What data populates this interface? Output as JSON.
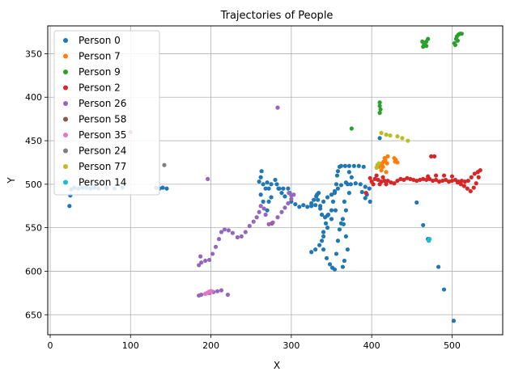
{
  "chart_data": {
    "type": "scatter",
    "title": "Trajectories of People",
    "xlabel": "X",
    "ylabel": "Y",
    "xlim": [
      -3,
      563
    ],
    "ylim": [
      673,
      318
    ],
    "y_inverted": true,
    "grid": true,
    "legend_position": "top-left",
    "x_ticks": [
      0,
      100,
      200,
      300,
      400,
      500
    ],
    "y_ticks": [
      350,
      400,
      450,
      500,
      550,
      600,
      650
    ],
    "series": [
      {
        "name": "Person 0",
        "color": "#1f77b4",
        "points": [
          [
            24,
            525
          ],
          [
            25,
            513
          ],
          [
            26,
            506
          ],
          [
            30,
            504
          ],
          [
            35,
            505
          ],
          [
            40,
            504
          ],
          [
            45,
            504
          ],
          [
            50,
            505
          ],
          [
            55,
            504
          ],
          [
            60,
            505
          ],
          [
            70,
            504
          ],
          [
            80,
            505
          ],
          [
            90,
            504
          ],
          [
            132,
            504
          ],
          [
            136,
            505
          ],
          [
            140,
            504
          ],
          [
            145,
            505
          ],
          [
            263,
            485
          ],
          [
            262,
            492
          ],
          [
            260,
            497
          ],
          [
            265,
            500
          ],
          [
            270,
            498
          ],
          [
            268,
            505
          ],
          [
            262,
            512
          ],
          [
            265,
            520
          ],
          [
            270,
            530
          ],
          [
            272,
            520
          ],
          [
            275,
            515
          ],
          [
            272,
            505
          ],
          [
            275,
            500
          ],
          [
            280,
            495
          ],
          [
            282,
            500
          ],
          [
            285,
            505
          ],
          [
            288,
            510
          ],
          [
            292,
            514
          ],
          [
            284,
            505
          ],
          [
            290,
            505
          ],
          [
            296,
            505
          ],
          [
            298,
            510
          ],
          [
            300,
            520
          ],
          [
            305,
            523
          ],
          [
            310,
            526
          ],
          [
            315,
            524
          ],
          [
            320,
            526
          ],
          [
            325,
            525
          ],
          [
            330,
            524
          ],
          [
            332,
            512
          ],
          [
            333,
            518
          ],
          [
            336,
            525
          ],
          [
            340,
            520
          ],
          [
            345,
            515
          ],
          [
            350,
            512
          ],
          [
            354,
            508
          ],
          [
            358,
            505
          ],
          [
            362,
            501
          ],
          [
            368,
            498
          ],
          [
            325,
            522
          ],
          [
            328,
            518
          ],
          [
            331,
            514
          ],
          [
            334,
            510
          ],
          [
            336,
            528
          ],
          [
            338,
            535
          ],
          [
            342,
            538
          ],
          [
            345,
            536
          ],
          [
            350,
            530
          ],
          [
            352,
            520
          ],
          [
            354,
            510
          ],
          [
            356,
            500
          ],
          [
            357,
            490
          ],
          [
            358,
            485
          ],
          [
            360,
            480
          ],
          [
            362,
            479
          ],
          [
            367,
            479
          ],
          [
            372,
            479
          ],
          [
            378,
            479
          ],
          [
            384,
            479
          ],
          [
            390,
            480
          ],
          [
            372,
            486
          ],
          [
            375,
            492
          ],
          [
            370,
            500
          ],
          [
            372,
            510
          ],
          [
            366,
            520
          ],
          [
            368,
            530
          ],
          [
            364,
            540
          ],
          [
            355,
            530
          ],
          [
            350,
            540
          ],
          [
            345,
            550
          ],
          [
            340,
            560
          ],
          [
            335,
            570
          ],
          [
            330,
            575
          ],
          [
            325,
            578
          ],
          [
            346,
            535
          ],
          [
            343,
            545
          ],
          [
            340,
            555
          ],
          [
            338,
            565
          ],
          [
            340,
            575
          ],
          [
            344,
            585
          ],
          [
            348,
            592
          ],
          [
            351,
            596
          ],
          [
            354,
            598
          ],
          [
            356,
            580
          ],
          [
            358,
            565
          ],
          [
            360,
            552
          ],
          [
            362,
            545
          ],
          [
            365,
            546
          ],
          [
            368,
            560
          ],
          [
            370,
            575
          ],
          [
            366,
            588
          ],
          [
            364,
            595
          ],
          [
            374,
            500
          ],
          [
            380,
            499
          ],
          [
            386,
            500
          ],
          [
            392,
            503
          ],
          [
            397,
            505
          ],
          [
            394,
            512
          ],
          [
            398,
            520
          ],
          [
            392,
            516
          ],
          [
            388,
            509
          ],
          [
            410,
            447
          ],
          [
            456,
            521
          ],
          [
            464,
            547
          ],
          [
            470,
            563
          ],
          [
            483,
            595
          ],
          [
            490,
            621
          ],
          [
            502,
            657
          ]
        ]
      },
      {
        "name": "Person 7",
        "color": "#ff7f0e",
        "points": [
          [
            409,
            480
          ],
          [
            411,
            478
          ],
          [
            413,
            476
          ],
          [
            415,
            474
          ],
          [
            417,
            472
          ],
          [
            414,
            480
          ],
          [
            412,
            484
          ],
          [
            418,
            486
          ],
          [
            419,
            476
          ],
          [
            416,
            470
          ],
          [
            420,
            468
          ],
          [
            428,
            470
          ],
          [
            430,
            472
          ],
          [
            432,
            475
          ],
          [
            429,
            474
          ]
        ]
      },
      {
        "name": "Person 9",
        "color": "#2ca02c",
        "points": [
          [
            375,
            436
          ],
          [
            410,
            406
          ],
          [
            410,
            410
          ],
          [
            411,
            414
          ],
          [
            410,
            418
          ],
          [
            463,
            336
          ],
          [
            464,
            342
          ],
          [
            465,
            340
          ],
          [
            466,
            338
          ],
          [
            468,
            336
          ],
          [
            470,
            333
          ],
          [
            468,
            341
          ],
          [
            503,
            338
          ],
          [
            505,
            333
          ],
          [
            506,
            330
          ],
          [
            508,
            328
          ],
          [
            510,
            327
          ],
          [
            512,
            327
          ],
          [
            507,
            335
          ],
          [
            504,
            340
          ]
        ]
      },
      {
        "name": "Person 2",
        "color": "#d62728",
        "points": [
          [
            276,
            545
          ],
          [
            393,
            510
          ],
          [
            398,
            493
          ],
          [
            400,
            497
          ],
          [
            402,
            500
          ],
          [
            404,
            494
          ],
          [
            406,
            490
          ],
          [
            408,
            495
          ],
          [
            410,
            500
          ],
          [
            412,
            497
          ],
          [
            414,
            492
          ],
          [
            416,
            496
          ],
          [
            418,
            500
          ],
          [
            420,
            496
          ],
          [
            424,
            498
          ],
          [
            428,
            499
          ],
          [
            432,
            496
          ],
          [
            436,
            494
          ],
          [
            440,
            495
          ],
          [
            444,
            493
          ],
          [
            448,
            494
          ],
          [
            452,
            495
          ],
          [
            456,
            496
          ],
          [
            460,
            495
          ],
          [
            464,
            494
          ],
          [
            468,
            495
          ],
          [
            472,
            494
          ],
          [
            476,
            496
          ],
          [
            480,
            495
          ],
          [
            484,
            497
          ],
          [
            488,
            496
          ],
          [
            492,
            495
          ],
          [
            496,
            497
          ],
          [
            500,
            496
          ],
          [
            504,
            495
          ],
          [
            508,
            497
          ],
          [
            512,
            496
          ],
          [
            516,
            497
          ],
          [
            520,
            496
          ],
          [
            524,
            492
          ],
          [
            528,
            488
          ],
          [
            532,
            486
          ],
          [
            535,
            484
          ],
          [
            533,
            492
          ],
          [
            530,
            499
          ],
          [
            527,
            504
          ],
          [
            523,
            508
          ],
          [
            519,
            505
          ],
          [
            515,
            502
          ],
          [
            511,
            500
          ],
          [
            507,
            498
          ],
          [
            500,
            491
          ],
          [
            490,
            490
          ],
          [
            480,
            490
          ],
          [
            470,
            491
          ],
          [
            474,
            468
          ],
          [
            478,
            468
          ]
        ]
      },
      {
        "name": "Person 26",
        "color": "#9467bd",
        "points": [
          [
            283,
            412
          ],
          [
            196,
            494
          ],
          [
            297,
            510
          ],
          [
            300,
            513
          ],
          [
            303,
            512
          ],
          [
            300,
            517
          ],
          [
            296,
            522
          ],
          [
            292,
            527
          ],
          [
            288,
            532
          ],
          [
            283,
            538
          ],
          [
            277,
            544
          ],
          [
            272,
            546
          ],
          [
            268,
            535
          ],
          [
            266,
            528
          ],
          [
            262,
            525
          ],
          [
            260,
            532
          ],
          [
            257,
            538
          ],
          [
            253,
            543
          ],
          [
            248,
            548
          ],
          [
            243,
            555
          ],
          [
            238,
            560
          ],
          [
            233,
            561
          ],
          [
            227,
            556
          ],
          [
            222,
            553
          ],
          [
            217,
            552
          ],
          [
            213,
            555
          ],
          [
            210,
            563
          ],
          [
            206,
            572
          ],
          [
            202,
            580
          ],
          [
            198,
            587
          ],
          [
            193,
            588
          ],
          [
            188,
            590
          ],
          [
            185,
            593
          ],
          [
            187,
            583
          ],
          [
            185,
            628
          ],
          [
            188,
            627
          ],
          [
            193,
            626
          ],
          [
            198,
            625
          ],
          [
            203,
            624
          ],
          [
            208,
            623
          ],
          [
            213,
            622
          ],
          [
            221,
            627
          ]
        ]
      },
      {
        "name": "Person 58",
        "color": "#8c564b",
        "points": [
          [
            100,
            440
          ]
        ]
      },
      {
        "name": "Person 35",
        "color": "#e377c2",
        "points": [
          [
            193,
            626
          ],
          [
            195,
            625
          ],
          [
            197,
            624
          ],
          [
            199,
            623
          ],
          [
            201,
            623
          ]
        ]
      },
      {
        "name": "Person 24",
        "color": "#7f7f7f",
        "points": [
          [
            142,
            478
          ]
        ]
      },
      {
        "name": "Person 77",
        "color": "#bcbd22",
        "points": [
          [
            412,
            441
          ],
          [
            418,
            443
          ],
          [
            423,
            444
          ],
          [
            432,
            445
          ],
          [
            438,
            447
          ],
          [
            445,
            450
          ],
          [
            407,
            478
          ],
          [
            409,
            476
          ],
          [
            406,
            481
          ]
        ]
      },
      {
        "name": "Person 14",
        "color": "#17becf",
        "points": [
          [
            471,
            565
          ],
          [
            472,
            563
          ],
          [
            471,
            564
          ]
        ]
      }
    ]
  }
}
